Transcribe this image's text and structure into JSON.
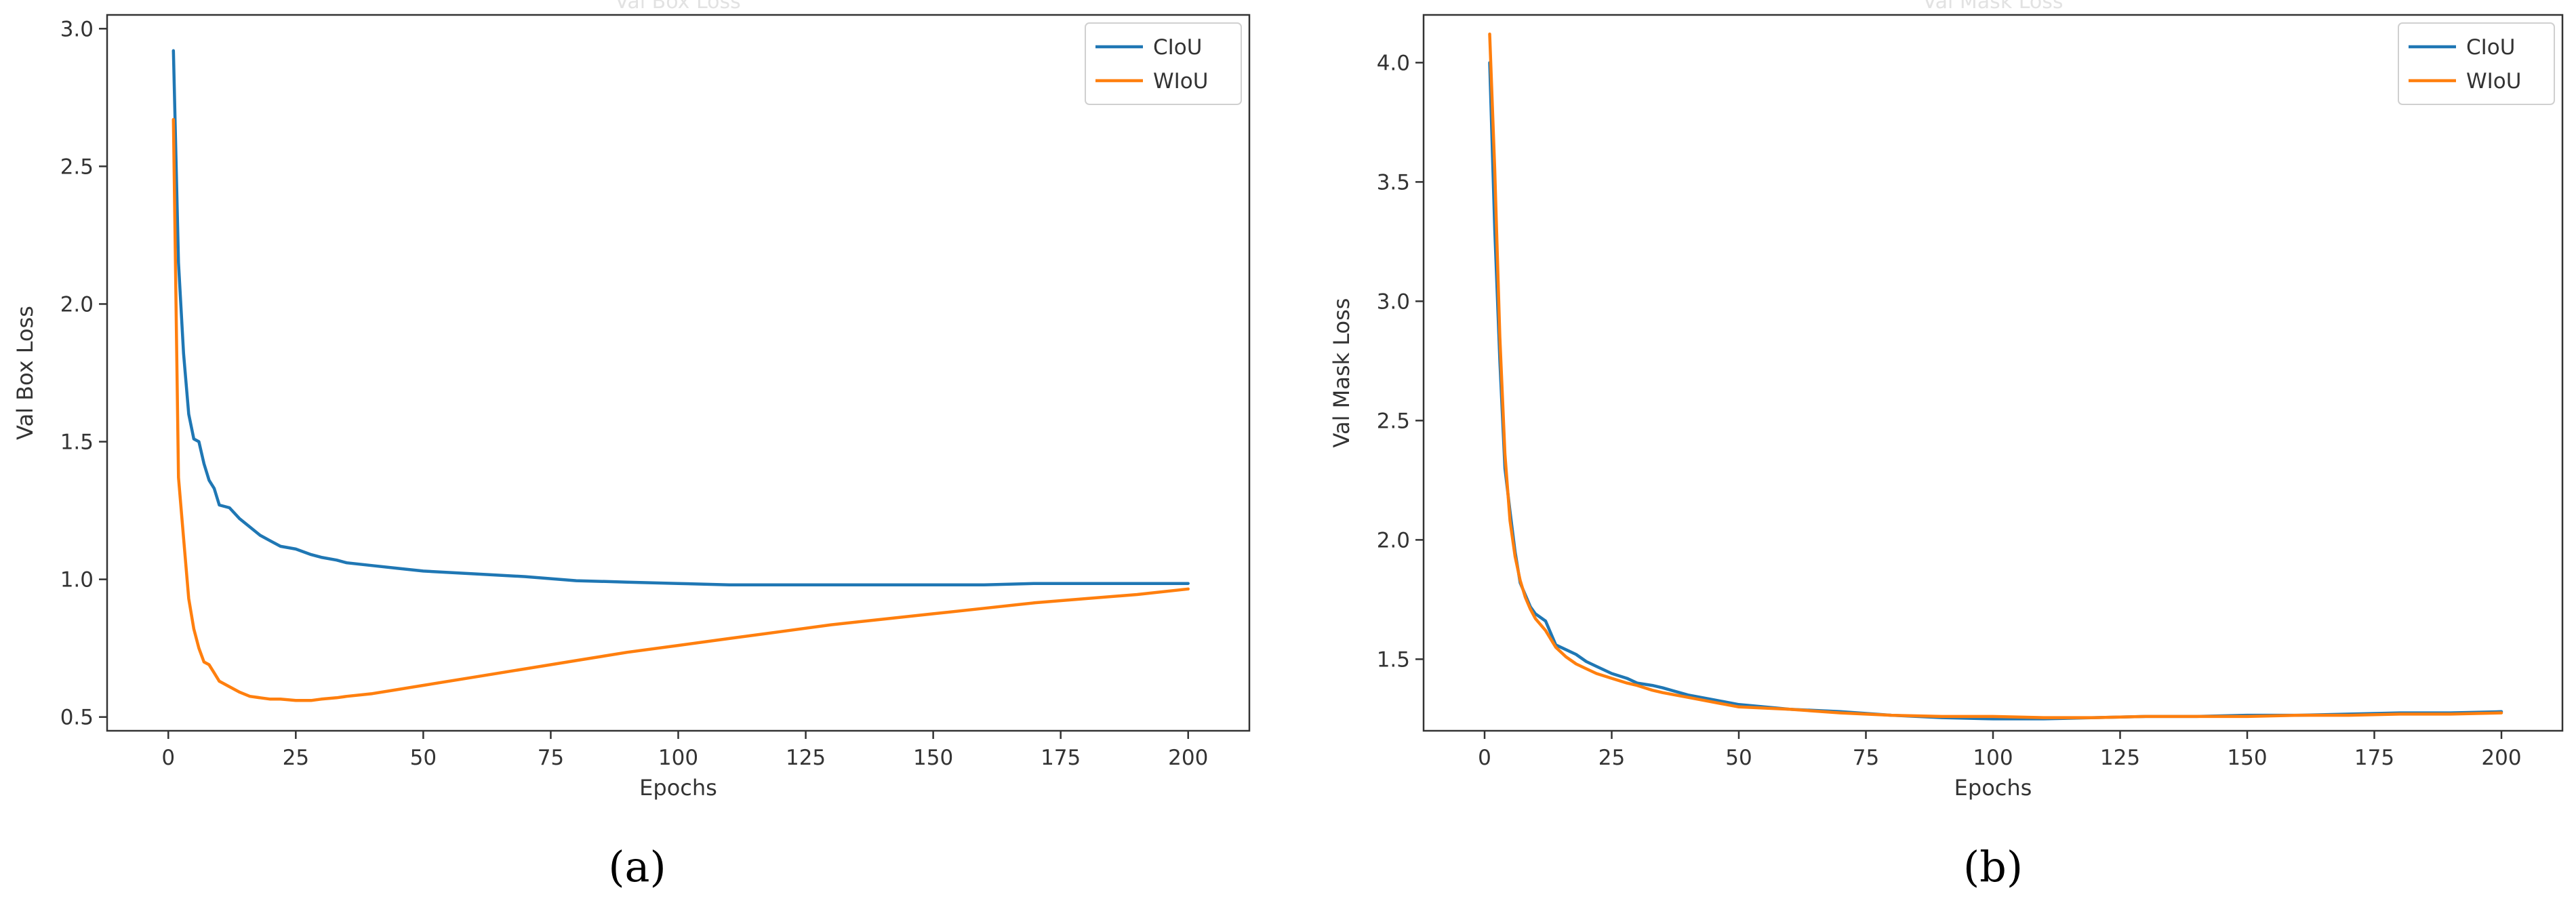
{
  "chart_data": [
    {
      "type": "line",
      "title": "Val Box Loss",
      "panel_label": "(a)",
      "xlabel": "Epochs",
      "ylabel": "Val Box Loss",
      "xlim": [
        -12,
        212
      ],
      "ylim": [
        0.45,
        3.05
      ],
      "xticks": [
        0,
        25,
        50,
        75,
        100,
        125,
        150,
        175,
        200
      ],
      "yticks": [
        0.5,
        1.0,
        1.5,
        2.0,
        2.5,
        3.0
      ],
      "ytick_labels": [
        "0.5",
        "1.0",
        "1.5",
        "2.0",
        "2.5",
        "3.0"
      ],
      "grid": false,
      "legend": "top-right",
      "x": [
        1,
        2,
        3,
        4,
        5,
        6,
        7,
        8,
        9,
        10,
        12,
        14,
        16,
        18,
        20,
        22,
        25,
        28,
        30,
        33,
        35,
        40,
        45,
        50,
        60,
        70,
        80,
        90,
        100,
        110,
        120,
        130,
        140,
        150,
        160,
        170,
        180,
        190,
        200
      ],
      "series": [
        {
          "name": "CIoU",
          "color": "#1f77b4",
          "values": [
            2.92,
            2.15,
            1.82,
            1.6,
            1.51,
            1.5,
            1.42,
            1.36,
            1.33,
            1.27,
            1.26,
            1.22,
            1.19,
            1.16,
            1.14,
            1.12,
            1.11,
            1.09,
            1.08,
            1.07,
            1.06,
            1.05,
            1.04,
            1.03,
            1.02,
            1.01,
            0.995,
            0.99,
            0.985,
            0.98,
            0.98,
            0.98,
            0.98,
            0.98,
            0.98,
            0.985,
            0.985,
            0.985,
            0.985
          ]
        },
        {
          "name": "WIoU",
          "color": "#ff7f0e",
          "values": [
            2.67,
            1.37,
            1.15,
            0.93,
            0.82,
            0.75,
            0.7,
            0.69,
            0.66,
            0.63,
            0.61,
            0.59,
            0.575,
            0.57,
            0.565,
            0.565,
            0.56,
            0.56,
            0.565,
            0.57,
            0.575,
            0.585,
            0.6,
            0.615,
            0.645,
            0.675,
            0.705,
            0.735,
            0.76,
            0.785,
            0.81,
            0.835,
            0.855,
            0.875,
            0.895,
            0.915,
            0.93,
            0.945,
            0.965
          ]
        }
      ]
    },
    {
      "type": "line",
      "title": "Val Mask Loss",
      "panel_label": "(b)",
      "xlabel": "Epochs",
      "ylabel": "Val Mask Loss",
      "xlim": [
        -12,
        212
      ],
      "ylim": [
        1.2,
        4.2
      ],
      "xticks": [
        0,
        25,
        50,
        75,
        100,
        125,
        150,
        175,
        200
      ],
      "yticks": [
        1.5,
        2.0,
        2.5,
        3.0,
        3.5,
        4.0
      ],
      "ytick_labels": [
        "1.5",
        "2.0",
        "2.5",
        "3.0",
        "3.5",
        "4.0"
      ],
      "grid": false,
      "legend": "top-right",
      "x": [
        1,
        2,
        3,
        4,
        5,
        6,
        7,
        8,
        9,
        10,
        12,
        14,
        16,
        18,
        20,
        22,
        25,
        28,
        30,
        33,
        35,
        40,
        45,
        50,
        60,
        70,
        80,
        90,
        100,
        110,
        120,
        130,
        140,
        150,
        160,
        170,
        180,
        190,
        200
      ],
      "series": [
        {
          "name": "CIoU",
          "color": "#1f77b4",
          "values": [
            4.0,
            3.3,
            2.75,
            2.3,
            2.12,
            1.95,
            1.82,
            1.77,
            1.72,
            1.69,
            1.66,
            1.56,
            1.54,
            1.52,
            1.49,
            1.47,
            1.44,
            1.42,
            1.4,
            1.39,
            1.38,
            1.35,
            1.33,
            1.31,
            1.29,
            1.28,
            1.265,
            1.255,
            1.25,
            1.25,
            1.255,
            1.26,
            1.26,
            1.265,
            1.265,
            1.27,
            1.275,
            1.275,
            1.28
          ]
        },
        {
          "name": "WIoU",
          "color": "#ff7f0e",
          "values": [
            4.12,
            3.55,
            2.85,
            2.36,
            2.08,
            1.93,
            1.83,
            1.76,
            1.71,
            1.67,
            1.62,
            1.55,
            1.51,
            1.48,
            1.46,
            1.44,
            1.42,
            1.4,
            1.39,
            1.37,
            1.36,
            1.34,
            1.32,
            1.3,
            1.29,
            1.275,
            1.265,
            1.26,
            1.26,
            1.255,
            1.255,
            1.26,
            1.26,
            1.26,
            1.265,
            1.265,
            1.27,
            1.27,
            1.275
          ]
        }
      ]
    }
  ]
}
